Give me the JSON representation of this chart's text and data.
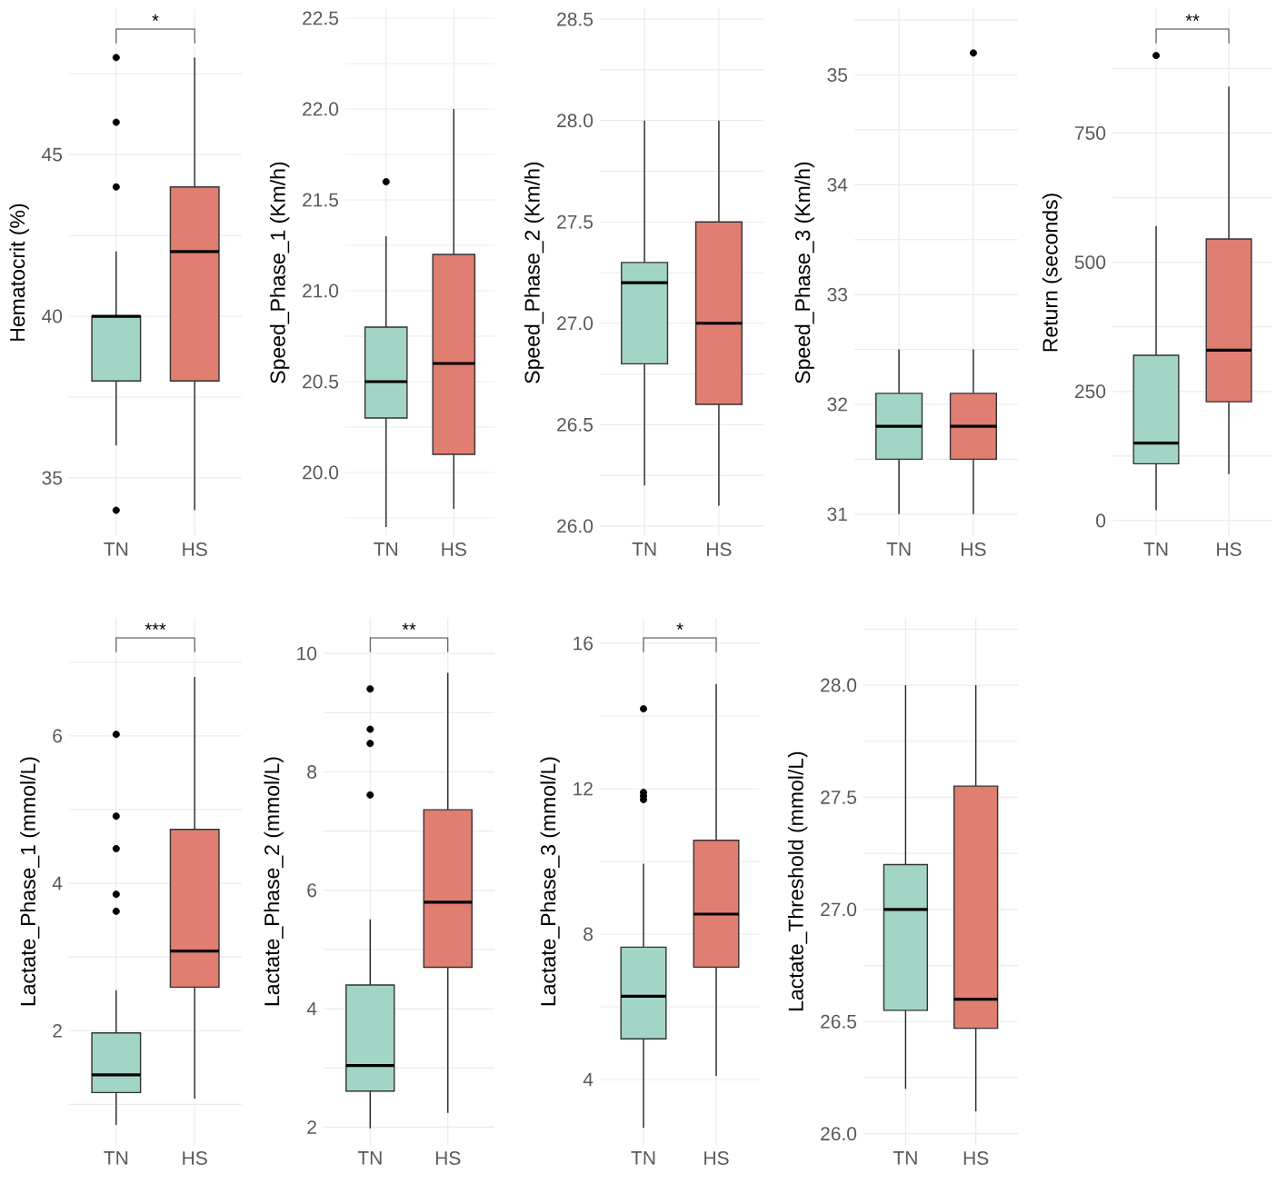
{
  "chart_data": [
    {
      "type": "box",
      "ylabel": "Hematocrit (%)",
      "categories": [
        "TN",
        "HS"
      ],
      "colors": [
        "#a3d5c7",
        "#e07e71"
      ],
      "grid": true,
      "ylim": [
        33.2,
        49.5
      ],
      "yticks": [
        {
          "value": 35,
          "label": "35"
        },
        {
          "value": 37.5,
          "label": null
        },
        {
          "value": 40,
          "label": "40"
        },
        {
          "value": 42.5,
          "label": null
        },
        {
          "value": 45,
          "label": "45"
        },
        {
          "value": 47.5,
          "label": null
        }
      ],
      "boxes": [
        {
          "low": 36,
          "q1": 38,
          "median": 40,
          "q3": 40,
          "high": 42,
          "outliers": [
            48,
            46,
            44,
            34
          ]
        },
        {
          "low": 34,
          "q1": 38,
          "median": 42,
          "q3": 44,
          "high": 48
        }
      ],
      "annotations": [
        "*"
      ]
    },
    {
      "type": "box",
      "ylabel": "Speed_Phase_1 (Km/h)",
      "categories": [
        "TN",
        "HS"
      ],
      "colors": [
        "#a3d5c7",
        "#e07e71"
      ],
      "grid": true,
      "ylim": [
        19.65,
        22.55
      ],
      "yticks": [
        {
          "value": 19.75,
          "label": null
        },
        {
          "value": 20,
          "label": "20.0"
        },
        {
          "value": 20.25,
          "label": null
        },
        {
          "value": 20.5,
          "label": "20.5"
        },
        {
          "value": 20.75,
          "label": null
        },
        {
          "value": 21,
          "label": "21.0"
        },
        {
          "value": 21.25,
          "label": null
        },
        {
          "value": 21.5,
          "label": "21.5"
        },
        {
          "value": 21.75,
          "label": null
        },
        {
          "value": 22,
          "label": "22.0"
        },
        {
          "value": 22.25,
          "label": null
        },
        {
          "value": 22.5,
          "label": "22.5"
        }
      ],
      "boxes": [
        {
          "low": 19.7,
          "q1": 20.3,
          "median": 20.5,
          "q3": 20.8,
          "high": 21.3,
          "outliers": [
            21.6
          ]
        },
        {
          "low": 19.8,
          "q1": 20.1,
          "median": 20.6,
          "q3": 21.2,
          "high": 22.0
        }
      ]
    },
    {
      "type": "box",
      "ylabel": "Speed_Phase_2 (Km/h)",
      "categories": [
        "TN",
        "HS"
      ],
      "colors": [
        "#a3d5c7",
        "#e07e71"
      ],
      "grid": true,
      "ylim": [
        25.95,
        28.55
      ],
      "yticks": [
        {
          "value": 26,
          "label": "26.0"
        },
        {
          "value": 26.25,
          "label": null
        },
        {
          "value": 26.5,
          "label": "26.5"
        },
        {
          "value": 26.75,
          "label": null
        },
        {
          "value": 27,
          "label": "27.0"
        },
        {
          "value": 27.25,
          "label": null
        },
        {
          "value": 27.5,
          "label": "27.5"
        },
        {
          "value": 27.75,
          "label": null
        },
        {
          "value": 28,
          "label": "28.0"
        },
        {
          "value": 28.25,
          "label": null
        },
        {
          "value": 28.5,
          "label": "28.5"
        }
      ],
      "boxes": [
        {
          "low": 26.2,
          "q1": 26.8,
          "median": 27.2,
          "q3": 27.3,
          "high": 28.0
        },
        {
          "low": 26.1,
          "q1": 26.6,
          "median": 27.0,
          "q3": 27.5,
          "high": 28.0
        }
      ]
    },
    {
      "type": "box",
      "ylabel": "Speed_Phase_3 (Km/h)",
      "categories": [
        "TN",
        "HS"
      ],
      "colors": [
        "#a3d5c7",
        "#e07e71"
      ],
      "grid": true,
      "ylim": [
        30.8,
        35.6
      ],
      "yticks": [
        {
          "value": 31,
          "label": "31"
        },
        {
          "value": 31.5,
          "label": null
        },
        {
          "value": 32,
          "label": "32"
        },
        {
          "value": 32.5,
          "label": null
        },
        {
          "value": 33,
          "label": "33"
        },
        {
          "value": 33.5,
          "label": null
        },
        {
          "value": 34,
          "label": "34"
        },
        {
          "value": 34.5,
          "label": null
        },
        {
          "value": 35,
          "label": "35"
        },
        {
          "value": 35.5,
          "label": null
        }
      ],
      "boxes": [
        {
          "low": 31.0,
          "q1": 31.5,
          "median": 31.8,
          "q3": 32.1,
          "high": 32.5
        },
        {
          "low": 31.0,
          "q1": 31.5,
          "median": 31.8,
          "q3": 32.1,
          "high": 32.5,
          "outliers": [
            35.2
          ]
        }
      ]
    },
    {
      "type": "box",
      "ylabel": "Return (seconds)",
      "categories": [
        "TN",
        "HS"
      ],
      "colors": [
        "#a3d5c7",
        "#e07e71"
      ],
      "grid": true,
      "ylim": [
        -30,
        990
      ],
      "yticks": [
        {
          "value": 0,
          "label": "0"
        },
        {
          "value": 125,
          "label": null
        },
        {
          "value": 250,
          "label": "250"
        },
        {
          "value": 375,
          "label": null
        },
        {
          "value": 500,
          "label": "500"
        },
        {
          "value": 625,
          "label": null
        },
        {
          "value": 750,
          "label": "750"
        },
        {
          "value": 875,
          "label": null
        }
      ],
      "boxes": [
        {
          "low": 20,
          "q1": 110,
          "median": 150,
          "q3": 320,
          "high": 570,
          "outliers": [
            900
          ]
        },
        {
          "low": 90,
          "q1": 230,
          "median": 330,
          "q3": 545,
          "high": 840
        }
      ],
      "annotations": [
        "**"
      ]
    },
    {
      "type": "box",
      "ylabel": "Lactate_Phase_1 (mmol/L)",
      "categories": [
        "TN",
        "HS"
      ],
      "colors": [
        "#a3d5c7",
        "#e07e71"
      ],
      "grid": true,
      "ylim": [
        0.45,
        7.6
      ],
      "yticks": [
        {
          "value": 1,
          "label": null
        },
        {
          "value": 2,
          "label": "2"
        },
        {
          "value": 3,
          "label": null
        },
        {
          "value": 4,
          "label": "4"
        },
        {
          "value": 5,
          "label": null
        },
        {
          "value": 6,
          "label": "6"
        },
        {
          "value": 7,
          "label": null
        }
      ],
      "boxes": [
        {
          "low": 0.72,
          "q1": 1.16,
          "median": 1.4,
          "q3": 1.97,
          "high": 2.55,
          "outliers": [
            6.02,
            4.91,
            4.47,
            3.85,
            3.62
          ]
        },
        {
          "low": 1.08,
          "q1": 2.59,
          "median": 3.08,
          "q3": 4.73,
          "high": 6.8
        }
      ],
      "annotations": [
        "***"
      ]
    },
    {
      "type": "box",
      "ylabel": "Lactate_Phase_2 (mmol/L)",
      "categories": [
        "TN",
        "HS"
      ],
      "colors": [
        "#a3d5c7",
        "#e07e71"
      ],
      "grid": true,
      "ylim": [
        1.7,
        10.6
      ],
      "yticks": [
        {
          "value": 2,
          "label": "2"
        },
        {
          "value": 3,
          "label": null
        },
        {
          "value": 4,
          "label": "4"
        },
        {
          "value": 5,
          "label": null
        },
        {
          "value": 6,
          "label": "6"
        },
        {
          "value": 7,
          "label": null
        },
        {
          "value": 8,
          "label": "8"
        },
        {
          "value": 9,
          "label": null
        },
        {
          "value": 10,
          "label": "10"
        }
      ],
      "boxes": [
        {
          "low": 1.98,
          "q1": 2.61,
          "median": 3.04,
          "q3": 4.4,
          "high": 5.51,
          "outliers": [
            9.4,
            8.72,
            8.48,
            7.61
          ]
        },
        {
          "low": 2.24,
          "q1": 4.7,
          "median": 5.8,
          "q3": 7.36,
          "high": 9.67
        }
      ],
      "annotations": [
        "**"
      ]
    },
    {
      "type": "box",
      "ylabel": "Lactate_Phase_3 (mmol/L)",
      "categories": [
        "TN",
        "HS"
      ],
      "colors": [
        "#a3d5c7",
        "#e07e71"
      ],
      "grid": true,
      "ylim": [
        2.2,
        16.7
      ],
      "yticks": [
        {
          "value": 4,
          "label": "4"
        },
        {
          "value": 6,
          "label": null
        },
        {
          "value": 8,
          "label": "8"
        },
        {
          "value": 10,
          "label": null
        },
        {
          "value": 12,
          "label": "12"
        },
        {
          "value": 14,
          "label": null
        },
        {
          "value": 16,
          "label": "16"
        }
      ],
      "boxes": [
        {
          "low": 2.67,
          "q1": 5.12,
          "median": 6.29,
          "q3": 7.64,
          "high": 9.94,
          "outliers": [
            14.2,
            11.9,
            11.8,
            11.7
          ]
        },
        {
          "low": 4.1,
          "q1": 7.09,
          "median": 8.55,
          "q3": 10.58,
          "high": 14.88
        }
      ],
      "annotations": [
        "*"
      ]
    },
    {
      "type": "box",
      "ylabel": "Lactate_Threshold (mmol/L)",
      "categories": [
        "TN",
        "HS"
      ],
      "colors": [
        "#a3d5c7",
        "#e07e71"
      ],
      "grid": true,
      "ylim": [
        25.95,
        28.3
      ],
      "yticks": [
        {
          "value": 26,
          "label": "26.0"
        },
        {
          "value": 26.25,
          "label": null
        },
        {
          "value": 26.5,
          "label": "26.5"
        },
        {
          "value": 26.75,
          "label": null
        },
        {
          "value": 27,
          "label": "27.0"
        },
        {
          "value": 27.25,
          "label": null
        },
        {
          "value": 27.5,
          "label": "27.5"
        },
        {
          "value": 27.75,
          "label": null
        },
        {
          "value": 28,
          "label": "28.0"
        },
        {
          "value": 28.25,
          "label": null
        }
      ],
      "boxes": [
        {
          "low": 26.2,
          "q1": 26.55,
          "median": 27.0,
          "q3": 27.2,
          "high": 28.0
        },
        {
          "low": 26.1,
          "q1": 26.47,
          "median": 26.6,
          "q3": 27.55,
          "high": 28.0
        }
      ]
    }
  ]
}
